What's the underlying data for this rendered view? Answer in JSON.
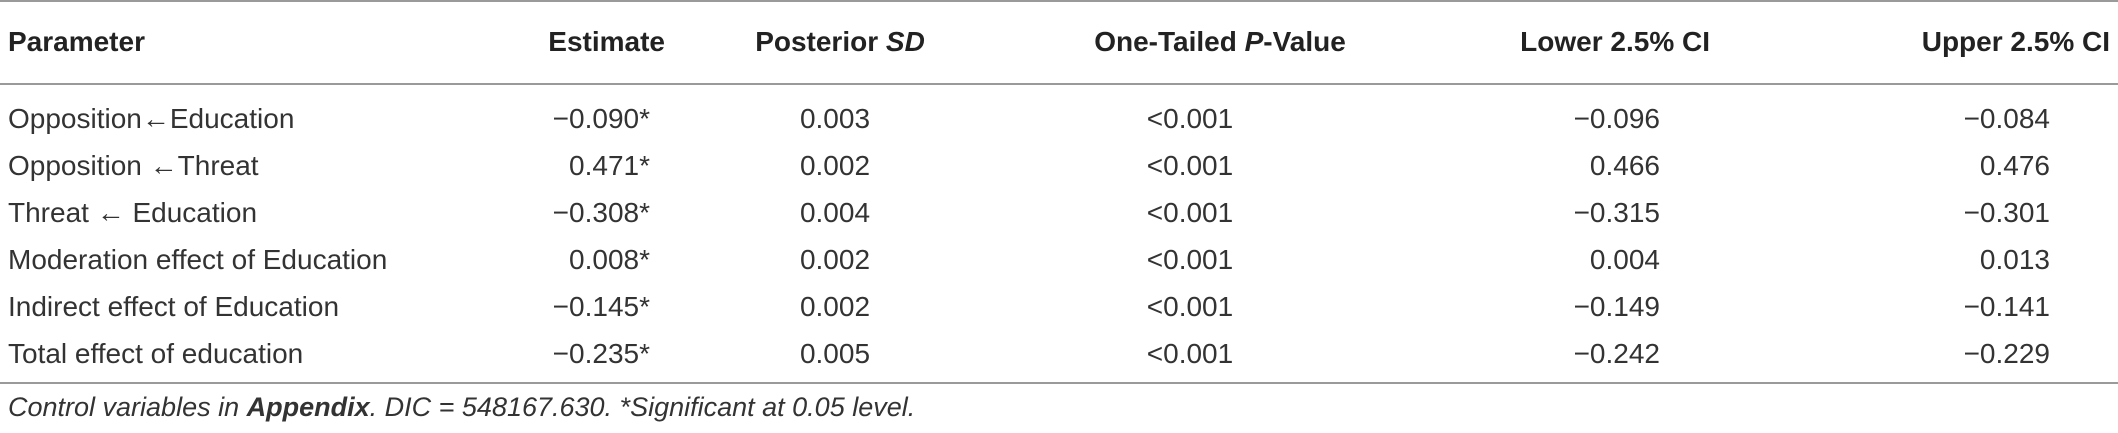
{
  "table": {
    "headers": {
      "parameter": "Parameter",
      "estimate": "Estimate",
      "posterior_sd_prefix": "Posterior ",
      "posterior_sd_italic": "SD",
      "p_prefix": "One-Tailed ",
      "p_italic": "P",
      "p_suffix": "-Value",
      "lower_ci": "Lower 2.5% CI",
      "upper_ci": "Upper 2.5% CI"
    },
    "rows": [
      {
        "parameter": "Opposition←Education",
        "estimate": "−0.090*",
        "sd": "0.003",
        "p": "<0.001",
        "lower": "−0.096",
        "upper": "−0.084"
      },
      {
        "parameter": "Opposition ←Threat",
        "estimate": "0.471*",
        "sd": "0.002",
        "p": "<0.001",
        "lower": "0.466",
        "upper": "0.476"
      },
      {
        "parameter": "Threat ← Education",
        "estimate": "−0.308*",
        "sd": "0.004",
        "p": "<0.001",
        "lower": "−0.315",
        "upper": "−0.301"
      },
      {
        "parameter": "Moderation effect of Education",
        "estimate": "0.008*",
        "sd": "0.002",
        "p": "<0.001",
        "lower": "0.004",
        "upper": "0.013"
      },
      {
        "parameter": "Indirect effect of Education",
        "estimate": "−0.145*",
        "sd": "0.002",
        "p": "<0.001",
        "lower": "−0.149",
        "upper": "−0.141"
      },
      {
        "parameter": "Total effect of education",
        "estimate": "−0.235*",
        "sd": "0.005",
        "p": "<0.001",
        "lower": "−0.242",
        "upper": "−0.229"
      }
    ]
  },
  "footnote": {
    "part1": "Control variables in ",
    "bold": "Appendix",
    "part2": ". DIC = 548167.630. *Significant at 0.05 level."
  }
}
